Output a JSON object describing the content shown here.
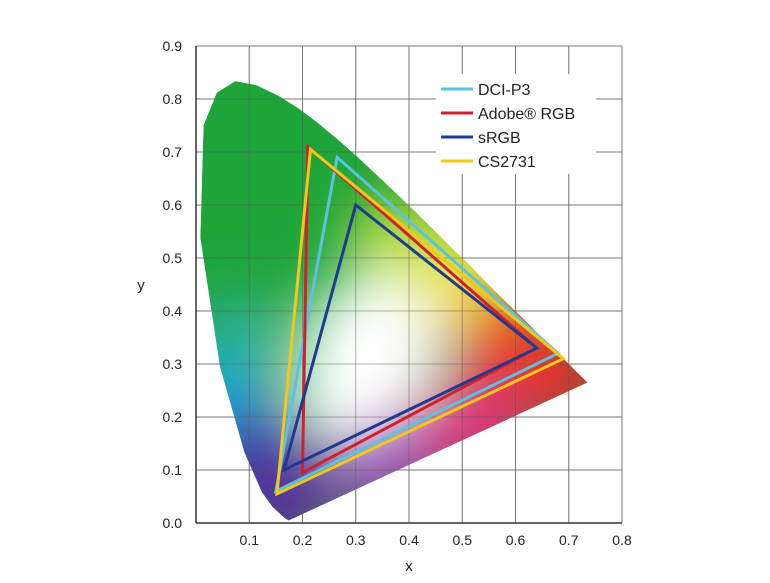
{
  "chart_data": {
    "type": "line",
    "title": "",
    "xlabel": "x",
    "ylabel": "y",
    "xlim": [
      0,
      0.8
    ],
    "ylim": [
      0,
      0.9
    ],
    "x_ticks": [
      "0.1",
      "0.2",
      "0.3",
      "0.4",
      "0.5",
      "0.6",
      "0.7",
      "0.8"
    ],
    "y_ticks": [
      "0.0",
      "0.1",
      "0.2",
      "0.3",
      "0.4",
      "0.5",
      "0.6",
      "0.7",
      "0.8",
      "0.9"
    ],
    "grid": true,
    "legend_position": "top-right",
    "spectral_locus": [
      [
        0.174,
        0.005
      ],
      [
        0.167,
        0.009
      ],
      [
        0.144,
        0.03
      ],
      [
        0.124,
        0.058
      ],
      [
        0.091,
        0.133
      ],
      [
        0.045,
        0.295
      ],
      [
        0.008,
        0.538
      ],
      [
        0.014,
        0.75
      ],
      [
        0.039,
        0.812
      ],
      [
        0.074,
        0.834
      ],
      [
        0.114,
        0.826
      ],
      [
        0.155,
        0.806
      ],
      [
        0.193,
        0.782
      ],
      [
        0.23,
        0.754
      ],
      [
        0.266,
        0.724
      ],
      [
        0.302,
        0.692
      ],
      [
        0.337,
        0.659
      ],
      [
        0.373,
        0.625
      ],
      [
        0.409,
        0.59
      ],
      [
        0.444,
        0.555
      ],
      [
        0.479,
        0.52
      ],
      [
        0.513,
        0.487
      ],
      [
        0.545,
        0.454
      ],
      [
        0.575,
        0.424
      ],
      [
        0.603,
        0.397
      ],
      [
        0.627,
        0.373
      ],
      [
        0.648,
        0.351
      ],
      [
        0.666,
        0.334
      ],
      [
        0.692,
        0.308
      ],
      [
        0.735,
        0.265
      ]
    ],
    "series": [
      {
        "name": "DCI-P3",
        "color": "#5bc3e0",
        "points": [
          [
            0.68,
            0.32
          ],
          [
            0.265,
            0.69
          ],
          [
            0.15,
            0.06
          ]
        ]
      },
      {
        "name": "Adobe® RGB",
        "color": "#d0202e",
        "points": [
          [
            0.64,
            0.33
          ],
          [
            0.21,
            0.71
          ],
          [
            0.2,
            0.095
          ]
        ]
      },
      {
        "name": "sRGB",
        "color": "#1f3a8f",
        "points": [
          [
            0.64,
            0.33
          ],
          [
            0.3,
            0.6
          ],
          [
            0.165,
            0.1
          ]
        ]
      },
      {
        "name": "CS2731",
        "color": "#f2c81c",
        "points": [
          [
            0.69,
            0.31
          ],
          [
            0.215,
            0.705
          ],
          [
            0.152,
            0.055
          ]
        ]
      }
    ]
  }
}
